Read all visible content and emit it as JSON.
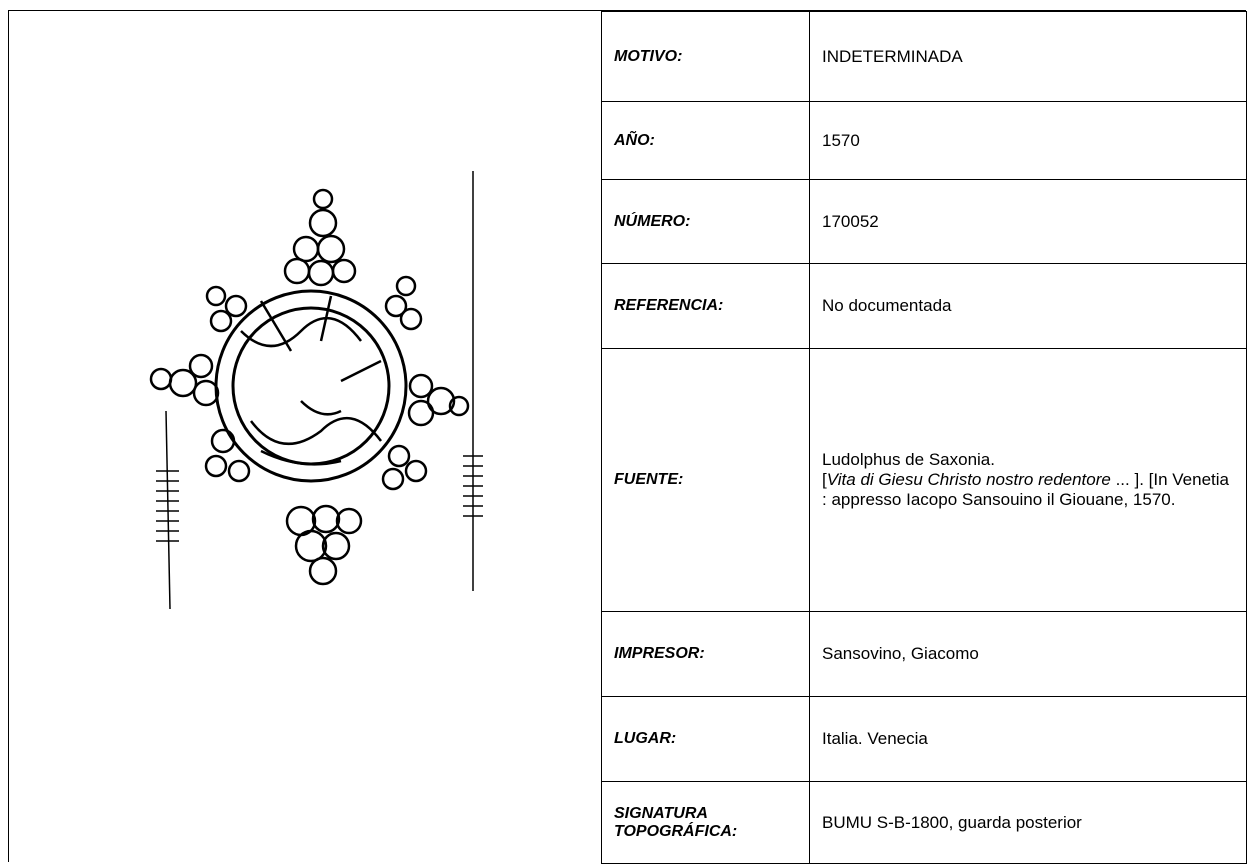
{
  "table": {
    "rows": [
      {
        "label": "MOTIVO:",
        "value": "INDETERMINADA"
      },
      {
        "label": "AÑO:",
        "value": "1570"
      },
      {
        "label": "NÚMERO:",
        "value": "170052"
      },
      {
        "label": "REFERENCIA:",
        "value": "No documentada"
      },
      {
        "label": "FUENTE:",
        "value": [
          "Ludolphus de Saxonia.",
          "[",
          "Vita di Giesu Christo nostro redentore",
          " ... ]. [In Venetia : appresso Iacopo Sansouino il Giouane, 1570."
        ]
      },
      {
        "label": "IMPRESOR:",
        "value": "Sansovino, Giacomo"
      },
      {
        "label": "LUGAR:",
        "value": "Italia. Venecia"
      },
      {
        "label": "SIGNATURA TOPOGRÁFICA:",
        "value": "BUMU S-B-1800, guarda posterior"
      }
    ]
  }
}
